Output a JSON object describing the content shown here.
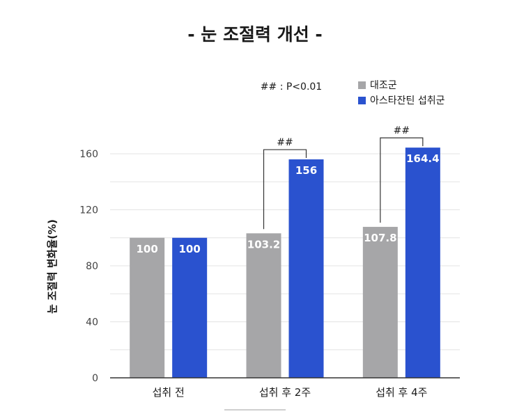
{
  "chart_data": {
    "type": "bar",
    "title": "- 눈 조절력 개선 -",
    "ylabel": "눈 조절력 변화율(%)",
    "xlabel": "",
    "categories": [
      "섭취 전",
      "섭취 후 2주",
      "섭취 후 4주"
    ],
    "series": [
      {
        "name": "대조군",
        "color": "#a6a6a8",
        "values": [
          100,
          103.2,
          107.8
        ],
        "labels": [
          "100",
          "103.2",
          "107.8"
        ]
      },
      {
        "name": "아스타잔틴 섭취군",
        "color": "#2a52cf",
        "values": [
          100,
          156,
          164.4
        ],
        "labels": [
          "100",
          "156",
          "164.4"
        ]
      }
    ],
    "ylim": [
      0,
      160
    ],
    "yticks": [
      "0",
      "40",
      "80",
      "120",
      "160"
    ],
    "grid": true,
    "legend_position": "top-right",
    "significance_note": "## : P<0.01",
    "significance_brackets": [
      {
        "category_index": 1,
        "label": "##"
      },
      {
        "category_index": 2,
        "label": "##"
      }
    ]
  }
}
